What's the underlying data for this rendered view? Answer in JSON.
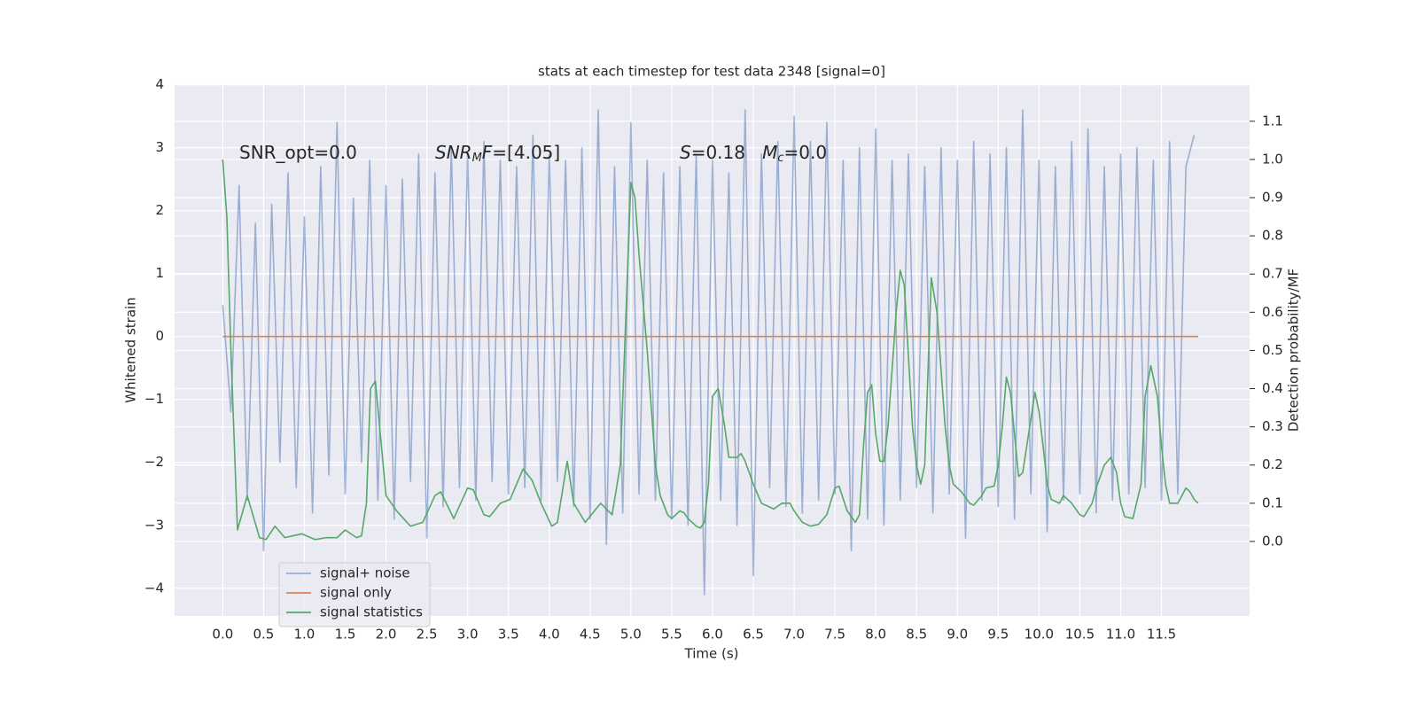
{
  "chart_data": {
    "type": "line",
    "title": "stats at each timestep for test data 2348 [signal=0]",
    "xlabel": "Time (s)",
    "ylabel": "Whitened strain",
    "y2label": "Detection probability/MF",
    "xlim": [
      -0.59,
      12.58
    ],
    "ylim": [
      -4.44,
      4.01
    ],
    "y2lim": [
      -0.195,
      1.197
    ],
    "xticks": [
      {
        "value": 0,
        "label": "0.0"
      },
      {
        "value": 0.5,
        "label": "0.5"
      },
      {
        "value": 1,
        "label": "1.0"
      },
      {
        "value": 1.5,
        "label": "1.5"
      },
      {
        "value": 2,
        "label": "2.0"
      },
      {
        "value": 2.5,
        "label": "2.5"
      },
      {
        "value": 3,
        "label": "3.0"
      },
      {
        "value": 3.5,
        "label": "3.5"
      },
      {
        "value": 4,
        "label": "4.0"
      },
      {
        "value": 4.5,
        "label": "4.5"
      },
      {
        "value": 5,
        "label": "5.0"
      },
      {
        "value": 5.5,
        "label": "5.5"
      },
      {
        "value": 6,
        "label": "6.0"
      },
      {
        "value": 6.5,
        "label": "6.5"
      },
      {
        "value": 7,
        "label": "7.0"
      },
      {
        "value": 7.5,
        "label": "7.5"
      },
      {
        "value": 8,
        "label": "8.0"
      },
      {
        "value": 8.5,
        "label": "8.5"
      },
      {
        "value": 9,
        "label": "9.0"
      },
      {
        "value": 9.5,
        "label": "9.5"
      },
      {
        "value": 10,
        "label": "10.0"
      },
      {
        "value": 10.5,
        "label": "10.5"
      },
      {
        "value": 11,
        "label": "11.0"
      },
      {
        "value": 11.5,
        "label": "11.5"
      }
    ],
    "yticks": [
      {
        "value": -4,
        "label": "−4"
      },
      {
        "value": -3,
        "label": "−3"
      },
      {
        "value": -2,
        "label": "−2"
      },
      {
        "value": -1,
        "label": "−1"
      },
      0,
      1,
      2,
      3,
      4
    ],
    "y2ticks": [
      {
        "value": 0,
        "label": "0.0"
      },
      {
        "value": 0.1,
        "label": "0.1"
      },
      {
        "value": 0.2,
        "label": "0.2"
      },
      {
        "value": 0.3,
        "label": "0.3"
      },
      {
        "value": 0.4,
        "label": "0.4"
      },
      {
        "value": 0.5,
        "label": "0.5"
      },
      {
        "value": 0.6,
        "label": "0.6"
      },
      {
        "value": 0.7,
        "label": "0.7"
      },
      {
        "value": 0.8,
        "label": "0.8"
      },
      {
        "value": 0.9,
        "label": "0.9"
      },
      {
        "value": 1,
        "label": "1.0"
      },
      {
        "value": 1.1,
        "label": "1.1"
      }
    ],
    "grid": true,
    "legend": "lower left",
    "annotations": [
      {
        "parts": [
          {
            "text": "SNR_opt=0.0",
            "style": "normal"
          }
        ]
      },
      {
        "parts": [
          {
            "text": "SNR",
            "style": "italic"
          },
          {
            "text": "M",
            "style": "sub"
          },
          {
            "text": "F",
            "style": "italic"
          },
          {
            "text": "=[4.05]",
            "style": "normal"
          }
        ]
      },
      {
        "parts": [
          {
            "text": "S",
            "style": "italic"
          },
          {
            "text": "=0.18   ",
            "style": "normal"
          },
          {
            "text": "M",
            "style": "italic"
          },
          {
            "text": "c",
            "style": "sub"
          },
          {
            "text": "=0.0",
            "style": "normal"
          }
        ]
      }
    ],
    "series": [
      {
        "name": "signal+ noise",
        "color": "#4c72b0",
        "alpha": 0.5,
        "x": [
          0,
          0.1,
          0.2,
          0.3,
          0.4,
          0.5,
          0.6,
          0.7,
          0.8,
          0.9,
          1,
          1.1,
          1.2,
          1.3,
          1.4,
          1.5,
          1.6,
          1.7,
          1.8,
          1.9,
          2,
          2.1,
          2.2,
          2.3,
          2.4,
          2.5,
          2.6,
          2.7,
          2.8,
          2.9,
          3,
          3.1,
          3.2,
          3.3,
          3.4,
          3.5,
          3.6,
          3.7,
          3.8,
          3.9,
          4,
          4.1,
          4.2,
          4.3,
          4.4,
          4.5,
          4.6,
          4.7,
          4.8,
          4.9,
          5,
          5.1,
          5.2,
          5.3,
          5.4,
          5.5,
          5.6,
          5.7,
          5.8,
          5.9,
          6,
          6.1,
          6.2,
          6.3,
          6.4,
          6.5,
          6.6,
          6.7,
          6.8,
          6.9,
          7,
          7.1,
          7.2,
          7.3,
          7.4,
          7.5,
          7.6,
          7.7,
          7.8,
          7.9,
          8,
          8.1,
          8.2,
          8.3,
          8.4,
          8.5,
          8.6,
          8.7,
          8.8,
          8.9,
          9,
          9.1,
          9.2,
          9.3,
          9.4,
          9.5,
          9.6,
          9.7,
          9.8,
          9.9,
          10,
          10.1,
          10.2,
          10.3,
          10.4,
          10.5,
          10.6,
          10.7,
          10.8,
          10.9,
          11,
          11.1,
          11.2,
          11.3,
          11.4,
          11.5,
          11.6,
          11.7,
          11.8,
          11.9
        ],
        "values": [
          0.5,
          -1.2,
          2.4,
          -2.6,
          1.8,
          -3.4,
          2.1,
          -2.0,
          2.6,
          -2.4,
          1.9,
          -2.8,
          2.7,
          -2.2,
          3.4,
          -2.5,
          2.2,
          -2.0,
          2.8,
          -2.6,
          2.4,
          -2.9,
          2.5,
          -2.3,
          2.9,
          -3.2,
          2.6,
          -2.7,
          3.0,
          -2.4,
          2.9,
          -2.6,
          3.1,
          -2.3,
          2.8,
          -2.5,
          2.7,
          -2.4,
          3.2,
          -2.6,
          2.9,
          -2.3,
          2.8,
          -2.7,
          3.0,
          -2.9,
          3.6,
          -3.3,
          2.7,
          -2.8,
          3.4,
          -2.5,
          2.8,
          -2.6,
          2.6,
          -2.9,
          2.7,
          -3.0,
          2.9,
          -4.1,
          2.8,
          -2.6,
          2.6,
          -3.0,
          3.6,
          -3.8,
          2.9,
          -2.4,
          3.1,
          -2.7,
          3.5,
          -2.8,
          3.1,
          -2.6,
          3.4,
          -2.5,
          2.8,
          -3.4,
          3.0,
          -2.9,
          3.3,
          -3.0,
          2.8,
          -2.6,
          2.9,
          -2.4,
          2.7,
          -2.8,
          3.0,
          -2.5,
          2.8,
          -3.2,
          3.1,
          -2.6,
          2.9,
          -2.7,
          3.0,
          -2.9,
          3.6,
          -2.5,
          2.8,
          -3.1,
          2.7,
          -2.6,
          3.1,
          -2.5,
          3.3,
          -2.8,
          2.7,
          -2.6,
          2.9,
          -2.5,
          3.0,
          -2.4,
          2.8,
          -2.6,
          3.1,
          -2.5,
          2.7,
          3.2
        ]
      },
      {
        "name": "signal only",
        "color": "#dd8452",
        "alpha": 1,
        "x": [
          0,
          11.95
        ],
        "values": [
          0,
          0
        ]
      },
      {
        "name": "signal statistics",
        "color": "#55a868",
        "alpha": 1,
        "axis": "y2",
        "x": [
          0,
          0.05,
          0.1,
          0.18,
          0.3,
          0.45,
          0.53,
          0.64,
          0.76,
          0.97,
          1.13,
          1.27,
          1.4,
          1.5,
          1.64,
          1.7,
          1.76,
          1.81,
          1.87,
          2.0,
          2.13,
          2.3,
          2.45,
          2.6,
          2.67,
          2.83,
          3.0,
          3.07,
          3.2,
          3.27,
          3.4,
          3.52,
          3.68,
          3.79,
          3.9,
          4.03,
          4.1,
          4.22,
          4.3,
          4.44,
          4.63,
          4.77,
          4.87,
          5.0,
          5.05,
          5.1,
          5.2,
          5.3,
          5.36,
          5.45,
          5.5,
          5.6,
          5.65,
          5.7,
          5.8,
          5.85,
          5.9,
          5.95,
          6.0,
          6.07,
          6.15,
          6.2,
          6.3,
          6.35,
          6.4,
          6.5,
          6.6,
          6.7,
          6.75,
          6.85,
          6.95,
          7.0,
          7.1,
          7.2,
          7.3,
          7.4,
          7.5,
          7.55,
          7.65,
          7.75,
          7.8,
          7.85,
          7.9,
          7.95,
          8.0,
          8.05,
          8.1,
          8.15,
          8.25,
          8.3,
          8.35,
          8.45,
          8.5,
          8.55,
          8.6,
          8.68,
          8.75,
          8.85,
          8.9,
          8.95,
          9.05,
          9.15,
          9.2,
          9.3,
          9.35,
          9.45,
          9.5,
          9.55,
          9.6,
          9.65,
          9.75,
          9.8,
          9.85,
          9.95,
          10.0,
          10.05,
          10.1,
          10.15,
          10.25,
          10.3,
          10.4,
          10.5,
          10.55,
          10.65,
          10.7,
          10.8,
          10.88,
          10.95,
          11.0,
          11.05,
          11.15,
          11.25,
          11.3,
          11.37,
          11.45,
          11.5,
          11.55,
          11.6,
          11.7,
          11.8,
          11.85,
          11.9,
          11.95
        ],
        "values": [
          1.0,
          0.85,
          0.5,
          0.03,
          0.12,
          0.01,
          0.005,
          0.04,
          0.01,
          0.02,
          0.005,
          0.01,
          0.01,
          0.03,
          0.01,
          0.015,
          0.1,
          0.4,
          0.42,
          0.12,
          0.08,
          0.04,
          0.05,
          0.12,
          0.13,
          0.06,
          0.14,
          0.135,
          0.07,
          0.065,
          0.1,
          0.11,
          0.19,
          0.16,
          0.1,
          0.04,
          0.05,
          0.21,
          0.1,
          0.05,
          0.1,
          0.07,
          0.2,
          0.94,
          0.9,
          0.75,
          0.5,
          0.2,
          0.12,
          0.07,
          0.06,
          0.08,
          0.075,
          0.06,
          0.04,
          0.035,
          0.05,
          0.15,
          0.38,
          0.4,
          0.3,
          0.22,
          0.22,
          0.23,
          0.21,
          0.15,
          0.1,
          0.09,
          0.085,
          0.1,
          0.1,
          0.08,
          0.05,
          0.04,
          0.045,
          0.07,
          0.14,
          0.145,
          0.08,
          0.05,
          0.07,
          0.25,
          0.39,
          0.41,
          0.28,
          0.21,
          0.21,
          0.3,
          0.6,
          0.71,
          0.67,
          0.3,
          0.2,
          0.15,
          0.2,
          0.69,
          0.6,
          0.3,
          0.2,
          0.15,
          0.13,
          0.1,
          0.095,
          0.12,
          0.14,
          0.145,
          0.2,
          0.3,
          0.43,
          0.39,
          0.17,
          0.18,
          0.25,
          0.39,
          0.34,
          0.25,
          0.15,
          0.11,
          0.1,
          0.12,
          0.1,
          0.07,
          0.065,
          0.1,
          0.14,
          0.2,
          0.22,
          0.18,
          0.1,
          0.065,
          0.06,
          0.15,
          0.38,
          0.46,
          0.38,
          0.25,
          0.15,
          0.1,
          0.1,
          0.14,
          0.13,
          0.11,
          0.1
        ]
      }
    ]
  }
}
